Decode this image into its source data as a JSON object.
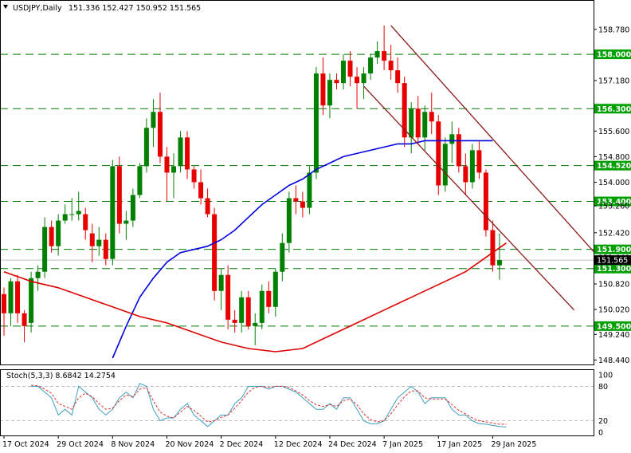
{
  "header": {
    "symbol": "USDJPY,Daily",
    "ohlc": "151.336 152.427 150.952 151.565"
  },
  "stoch_header": {
    "text": "Stoch(5,3,3) 8.6842 14.2754"
  },
  "colors": {
    "bull": "#008000",
    "bear": "#e60000",
    "ma_fast": "#0000e0",
    "ma_slow": "#dd0000",
    "channel": "#8b1a1a",
    "level_line": "#007a00",
    "level_box": "#00a000",
    "stoch_main": "#3aa0c0",
    "stoch_signal": "#e03030",
    "price_box": "#000000"
  },
  "chart_data": [
    {
      "type": "candlestick",
      "title": "USDJPY,Daily",
      "x_labels": [
        "17 Oct 2024",
        "29 Oct 2024",
        "8 Nov 2024",
        "20 Nov 2024",
        "2 Dec 2024",
        "12 Dec 2024",
        "24 Dec 2024",
        "7 Jan 2025",
        "17 Jan 2025",
        "29 Jan 2025"
      ],
      "x_label_index": [
        0,
        8,
        16,
        24,
        32,
        40,
        48,
        56,
        64,
        72
      ],
      "y_ticks": [
        158.78,
        157.18,
        155.6,
        154.8,
        154.0,
        153.26,
        152.42,
        151.64,
        150.82,
        150.02,
        149.24,
        148.44
      ],
      "y_tick_labels": [
        "158.780",
        "157.180",
        "155.600",
        "154.800",
        "154.000",
        "153.260",
        "152.420",
        "151.640",
        "150.820",
        "150.020",
        "149.240",
        "148.440"
      ],
      "ylim": [
        148.3,
        159.2
      ],
      "horizontal_levels": [
        {
          "value": 158.0,
          "label": "158.000"
        },
        {
          "value": 156.3,
          "label": "156.300"
        },
        {
          "value": 154.52,
          "label": "154.520"
        },
        {
          "value": 153.4,
          "label": "153.400"
        },
        {
          "value": 151.9,
          "label": "151.900"
        },
        {
          "value": 151.3,
          "label": "151.300"
        },
        {
          "value": 149.5,
          "label": "149.500"
        }
      ],
      "current_price": {
        "value": 151.565,
        "label": "151.565"
      },
      "ohlc": [
        [
          150.5,
          150.7,
          149.2,
          149.9
        ],
        [
          149.9,
          151.0,
          149.5,
          150.9
        ],
        [
          150.9,
          151.1,
          149.6,
          149.9
        ],
        [
          149.9,
          150.0,
          149.0,
          149.5
        ],
        [
          149.6,
          151.2,
          149.3,
          151.0
        ],
        [
          151.0,
          151.4,
          150.6,
          151.2
        ],
        [
          151.2,
          152.9,
          151.0,
          152.6
        ],
        [
          152.6,
          152.8,
          151.8,
          152.0
        ],
        [
          152.0,
          153.0,
          151.7,
          152.8
        ],
        [
          152.8,
          153.3,
          152.7,
          153.0
        ],
        [
          153.0,
          153.5,
          152.8,
          153.0
        ],
        [
          153.0,
          153.7,
          152.8,
          153.1
        ],
        [
          153.0,
          153.2,
          152.2,
          152.5
        ],
        [
          152.4,
          152.7,
          151.5,
          152.0
        ],
        [
          152.0,
          152.6,
          151.7,
          152.2
        ],
        [
          152.2,
          152.4,
          151.4,
          151.6
        ],
        [
          151.6,
          154.7,
          151.4,
          154.5
        ],
        [
          154.5,
          154.8,
          152.4,
          152.7
        ],
        [
          152.7,
          153.1,
          152.2,
          152.8
        ],
        [
          152.8,
          153.8,
          152.6,
          153.6
        ],
        [
          153.6,
          154.6,
          153.5,
          154.5
        ],
        [
          154.5,
          156.0,
          154.3,
          155.7
        ],
        [
          155.7,
          156.6,
          155.1,
          156.2
        ],
        [
          156.2,
          156.8,
          154.6,
          154.8
        ],
        [
          154.8,
          155.1,
          153.4,
          154.3
        ],
        [
          154.3,
          154.9,
          153.5,
          154.5
        ],
        [
          154.5,
          155.6,
          154.3,
          155.4
        ],
        [
          155.4,
          155.6,
          154.1,
          154.4
        ],
        [
          154.4,
          154.5,
          153.8,
          154.0
        ],
        [
          154.0,
          154.4,
          153.3,
          153.5
        ],
        [
          153.5,
          153.8,
          152.9,
          153.0
        ],
        [
          153.0,
          153.2,
          150.3,
          150.6
        ],
        [
          150.6,
          151.3,
          150.0,
          151.1
        ],
        [
          151.1,
          151.4,
          149.4,
          149.7
        ],
        [
          149.7,
          150.0,
          149.3,
          149.6
        ],
        [
          149.6,
          150.6,
          149.3,
          150.4
        ],
        [
          150.4,
          150.6,
          149.4,
          149.5
        ],
        [
          149.5,
          149.9,
          148.9,
          149.6
        ],
        [
          149.6,
          150.8,
          149.4,
          150.6
        ],
        [
          150.6,
          150.9,
          149.9,
          150.1
        ],
        [
          150.1,
          151.3,
          149.8,
          151.2
        ],
        [
          151.2,
          152.4,
          150.9,
          152.1
        ],
        [
          152.1,
          153.7,
          151.8,
          153.5
        ],
        [
          153.5,
          153.9,
          153.0,
          153.4
        ],
        [
          153.4,
          153.7,
          152.9,
          153.2
        ],
        [
          153.2,
          154.5,
          153.0,
          154.3
        ],
        [
          154.3,
          157.6,
          154.1,
          157.4
        ],
        [
          157.4,
          157.9,
          156.1,
          156.4
        ],
        [
          156.4,
          157.4,
          156.0,
          157.2
        ],
        [
          157.2,
          157.4,
          156.9,
          157.1
        ],
        [
          157.1,
          158.0,
          156.9,
          157.8
        ],
        [
          157.8,
          158.1,
          157.0,
          157.3
        ],
        [
          157.3,
          157.6,
          156.3,
          157.1
        ],
        [
          157.1,
          157.6,
          156.6,
          157.4
        ],
        [
          157.4,
          158.0,
          157.2,
          157.9
        ],
        [
          157.9,
          158.4,
          157.7,
          158.1
        ],
        [
          158.1,
          158.9,
          157.5,
          157.8
        ],
        [
          157.8,
          158.3,
          157.2,
          157.5
        ],
        [
          157.5,
          157.9,
          156.8,
          157.1
        ],
        [
          157.1,
          157.3,
          155.1,
          155.4
        ],
        [
          155.4,
          156.5,
          154.9,
          156.3
        ],
        [
          156.3,
          156.7,
          155.2,
          155.4
        ],
        [
          155.4,
          156.4,
          155.0,
          156.2
        ],
        [
          156.2,
          156.8,
          155.5,
          155.9
        ],
        [
          155.9,
          156.1,
          153.6,
          153.9
        ],
        [
          153.9,
          155.4,
          153.7,
          155.2
        ],
        [
          155.2,
          155.9,
          154.6,
          155.5
        ],
        [
          155.5,
          155.7,
          154.3,
          154.5
        ],
        [
          154.5,
          154.9,
          153.6,
          154.0
        ],
        [
          154.0,
          155.2,
          153.8,
          155.0
        ],
        [
          155.0,
          155.3,
          154.1,
          154.3
        ],
        [
          154.3,
          154.4,
          152.3,
          152.5
        ],
        [
          152.5,
          152.8,
          151.2,
          151.4
        ],
        [
          151.4,
          152.4,
          150.95,
          151.565
        ]
      ],
      "series": [
        {
          "name": "MA fast",
          "values": [
            [
              16,
              148.5
            ],
            [
              18,
              149.5
            ],
            [
              20,
              150.4
            ],
            [
              22,
              151.0
            ],
            [
              24,
              151.5
            ],
            [
              26,
              151.8
            ],
            [
              28,
              151.9
            ],
            [
              30,
              152.0
            ],
            [
              32,
              152.2
            ],
            [
              34,
              152.5
            ],
            [
              36,
              152.9
            ],
            [
              38,
              153.3
            ],
            [
              40,
              153.6
            ],
            [
              42,
              153.9
            ],
            [
              44,
              154.1
            ],
            [
              46,
              154.4
            ],
            [
              48,
              154.6
            ],
            [
              50,
              154.8
            ],
            [
              52,
              154.9
            ],
            [
              54,
              155.0
            ],
            [
              56,
              155.1
            ],
            [
              58,
              155.2
            ],
            [
              60,
              155.2
            ],
            [
              62,
              155.3
            ],
            [
              64,
              155.3
            ],
            [
              66,
              155.3
            ],
            [
              68,
              155.3
            ],
            [
              70,
              155.3
            ],
            [
              72,
              155.3
            ]
          ]
        },
        {
          "name": "MA slow",
          "values": [
            [
              0,
              151.2
            ],
            [
              4,
              150.9
            ],
            [
              8,
              150.7
            ],
            [
              12,
              150.4
            ],
            [
              16,
              150.1
            ],
            [
              20,
              149.8
            ],
            [
              24,
              149.6
            ],
            [
              28,
              149.3
            ],
            [
              32,
              149.0
            ],
            [
              36,
              148.8
            ],
            [
              40,
              148.7
            ],
            [
              44,
              148.8
            ],
            [
              48,
              149.2
            ],
            [
              52,
              149.6
            ],
            [
              56,
              150.0
            ],
            [
              60,
              150.4
            ],
            [
              64,
              150.8
            ],
            [
              68,
              151.2
            ],
            [
              70,
              151.5
            ],
            [
              72,
              151.8
            ],
            [
              74,
              152.1
            ]
          ]
        }
      ],
      "channel": {
        "upper": [
          [
            57,
            158.9
          ],
          [
            87,
            151.8
          ]
        ],
        "lower": [
          [
            53,
            157.0
          ],
          [
            84,
            150.0
          ]
        ]
      }
    },
    {
      "type": "line",
      "title": "Stoch(5,3,3) 8.6842 14.2754",
      "ylim": [
        0,
        100
      ],
      "y_ticks": [
        100,
        80,
        20,
        0
      ],
      "levels": [
        80,
        20
      ],
      "series": [
        {
          "name": "Stoch(5,3,3)",
          "values": [
            80,
            80,
            70,
            60,
            30,
            40,
            30,
            80,
            70,
            60,
            40,
            30,
            40,
            60,
            70,
            60,
            85,
            80,
            40,
            20,
            25,
            25,
            40,
            50,
            30,
            20,
            10,
            20,
            30,
            30,
            50,
            60,
            80,
            80,
            80,
            75,
            80,
            80,
            75,
            70,
            60,
            50,
            40,
            40,
            50,
            40,
            60,
            60,
            40,
            20,
            15,
            15,
            20,
            40,
            60,
            70,
            80,
            70,
            50,
            60,
            60,
            60,
            40,
            30,
            30,
            20,
            15,
            14,
            12,
            10,
            9
          ]
        },
        {
          "name": "signal",
          "values": [
            82,
            81,
            75,
            68,
            50,
            45,
            40,
            60,
            68,
            62,
            50,
            40,
            42,
            55,
            65,
            62,
            75,
            78,
            55,
            35,
            28,
            25,
            35,
            45,
            38,
            28,
            18,
            20,
            26,
            30,
            42,
            55,
            70,
            78,
            80,
            78,
            80,
            80,
            78,
            72,
            65,
            55,
            48,
            45,
            48,
            45,
            55,
            58,
            48,
            32,
            22,
            18,
            20,
            32,
            48,
            62,
            72,
            72,
            60,
            58,
            58,
            58,
            48,
            38,
            32,
            25,
            20,
            18,
            16,
            14,
            14
          ]
        }
      ],
      "y_tick_labels": [
        "100",
        "80",
        "20",
        "0"
      ]
    }
  ]
}
